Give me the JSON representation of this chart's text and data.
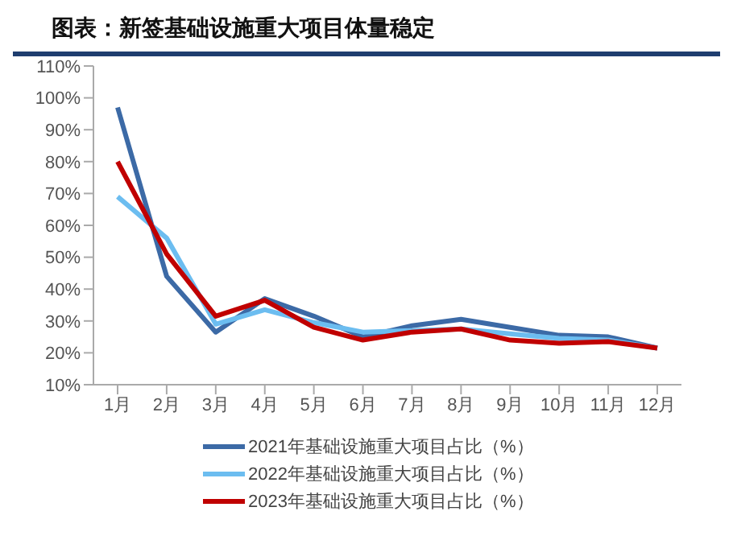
{
  "chart_data": {
    "type": "line",
    "title": "图表：新签基础设施重大项目体量稳定",
    "categories": [
      "1月",
      "2月",
      "3月",
      "4月",
      "5月",
      "6月",
      "7月",
      "8月",
      "9月",
      "10月",
      "11月",
      "12月"
    ],
    "series": [
      {
        "name": "2021年基础设施重大项目占比（%）",
        "color": "#3c6aa6",
        "values": [
          97,
          44,
          26.5,
          37,
          31.5,
          25,
          28.5,
          30.5,
          28,
          25.5,
          25,
          21.5
        ]
      },
      {
        "name": "2022年基础设施重大项目占比（%）",
        "color": "#6cbdf0",
        "values": [
          69,
          56,
          29,
          33.5,
          29.5,
          26.5,
          27,
          27.5,
          26,
          24.5,
          24,
          21.5
        ]
      },
      {
        "name": "2023年基础设施重大项目占比（%）",
        "color": "#c00000",
        "values": [
          80,
          51,
          31.5,
          36.5,
          28,
          24,
          26.5,
          27.5,
          24,
          23,
          23.5,
          21.5
        ]
      }
    ],
    "ylim": [
      10,
      110
    ],
    "yticks": [
      {
        "value": 10,
        "label": "10%"
      },
      {
        "value": 20,
        "label": "20%"
      },
      {
        "value": 30,
        "label": "30%"
      },
      {
        "value": 40,
        "label": "40%"
      },
      {
        "value": 50,
        "label": "50%"
      },
      {
        "value": 60,
        "label": "60%"
      },
      {
        "value": 70,
        "label": "70%"
      },
      {
        "value": 80,
        "label": "80%"
      },
      {
        "value": 90,
        "label": "90%"
      },
      {
        "value": 100,
        "label": "100%"
      },
      {
        "value": 110,
        "label": "110%"
      }
    ],
    "grid": false,
    "legend": "bottom",
    "marker": "none",
    "line_style": "solid"
  }
}
